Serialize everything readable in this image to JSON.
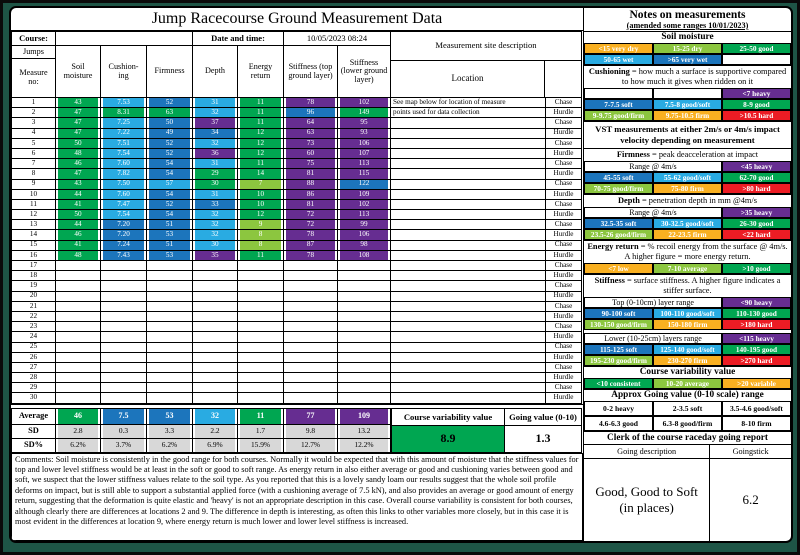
{
  "title": "Jump Racecourse Ground Measurement Data",
  "palette": {
    "green": "#00A651",
    "light_green": "#8CC63F",
    "cyan": "#29ABE2",
    "blue": "#1C75BC",
    "purple": "#662D91",
    "amber": "#F9B021",
    "red": "#EC1C24",
    "grey": "#D8D8D8",
    "variability_green": "#00A651",
    "page_margin_green": "#1E5546"
  },
  "header": {
    "course_label": "Course:",
    "datetime_label": "Date and time:",
    "datetime_value": "10/05/2023 08:24",
    "site_desc": "Measurement site description",
    "location": "Location",
    "jumps": "Jumps",
    "measure_no": "Measure\nno:"
  },
  "columns": {
    "soil": "Soil\nmoisture",
    "cushioning": "Cushion-\ning",
    "firmness": "Firmness",
    "depth": "Depth",
    "energy": "Energy\nreturn",
    "stiff_top": "Stiffness (top\nground layer)",
    "stiff_lower": "Stiffness\n(lower ground\nlayer)"
  },
  "measurements": {
    "location_notes": [
      "See map below for location of measure",
      "points used for data collection"
    ],
    "rows": [
      {
        "no": "1",
        "course": "Chase",
        "cells": [
          [
            "43",
            "green"
          ],
          [
            "7.53",
            "cyan"
          ],
          [
            "52",
            "blue"
          ],
          [
            "31",
            "cyan"
          ],
          [
            "11",
            "green"
          ],
          [
            "78",
            "purple"
          ],
          [
            "102",
            "purple"
          ]
        ]
      },
      {
        "no": "2",
        "course": "Hurdle",
        "cells": [
          [
            "47",
            "green"
          ],
          [
            "8.31",
            "green"
          ],
          [
            "63",
            "green"
          ],
          [
            "32",
            "cyan"
          ],
          [
            "11",
            "green"
          ],
          [
            "96",
            "blue"
          ],
          [
            "149",
            "green"
          ]
        ]
      },
      {
        "no": "3",
        "course": "Chase",
        "cells": [
          [
            "47",
            "green"
          ],
          [
            "7.25",
            "cyan"
          ],
          [
            "50",
            "blue"
          ],
          [
            "37",
            "purple"
          ],
          [
            "11",
            "green"
          ],
          [
            "64",
            "purple"
          ],
          [
            "95",
            "purple"
          ]
        ]
      },
      {
        "no": "4",
        "course": "Hurdle",
        "cells": [
          [
            "47",
            "green"
          ],
          [
            "7.22",
            "cyan"
          ],
          [
            "49",
            "blue"
          ],
          [
            "34",
            "blue"
          ],
          [
            "12",
            "green"
          ],
          [
            "63",
            "purple"
          ],
          [
            "93",
            "purple"
          ]
        ]
      },
      {
        "no": "5",
        "course": "Chase",
        "cells": [
          [
            "50",
            "green"
          ],
          [
            "7.51",
            "cyan"
          ],
          [
            "52",
            "blue"
          ],
          [
            "32",
            "cyan"
          ],
          [
            "12",
            "green"
          ],
          [
            "73",
            "purple"
          ],
          [
            "106",
            "purple"
          ]
        ]
      },
      {
        "no": "6",
        "course": "Hurdle",
        "cells": [
          [
            "48",
            "green"
          ],
          [
            "7.54",
            "cyan"
          ],
          [
            "52",
            "blue"
          ],
          [
            "36",
            "purple"
          ],
          [
            "12",
            "green"
          ],
          [
            "60",
            "purple"
          ],
          [
            "107",
            "purple"
          ]
        ]
      },
      {
        "no": "7",
        "course": "Chase",
        "cells": [
          [
            "46",
            "green"
          ],
          [
            "7.60",
            "cyan"
          ],
          [
            "54",
            "blue"
          ],
          [
            "31",
            "cyan"
          ],
          [
            "11",
            "green"
          ],
          [
            "75",
            "purple"
          ],
          [
            "113",
            "purple"
          ]
        ]
      },
      {
        "no": "8",
        "course": "Hurdle",
        "cells": [
          [
            "47",
            "green"
          ],
          [
            "7.82",
            "cyan"
          ],
          [
            "54",
            "blue"
          ],
          [
            "29",
            "green"
          ],
          [
            "14",
            "green"
          ],
          [
            "81",
            "purple"
          ],
          [
            "115",
            "purple"
          ]
        ]
      },
      {
        "no": "9",
        "course": "Chase",
        "cells": [
          [
            "43",
            "green"
          ],
          [
            "7.50",
            "cyan"
          ],
          [
            "57",
            "cyan"
          ],
          [
            "30",
            "green"
          ],
          [
            "7",
            "light_green"
          ],
          [
            "88",
            "purple"
          ],
          [
            "122",
            "blue"
          ]
        ]
      },
      {
        "no": "10",
        "course": "Hurdle",
        "cells": [
          [
            "44",
            "green"
          ],
          [
            "7.60",
            "cyan"
          ],
          [
            "54",
            "blue"
          ],
          [
            "31",
            "cyan"
          ],
          [
            "10",
            "green"
          ],
          [
            "86",
            "purple"
          ],
          [
            "109",
            "purple"
          ]
        ]
      },
      {
        "no": "11",
        "course": "Chase",
        "cells": [
          [
            "41",
            "green"
          ],
          [
            "7.47",
            "cyan"
          ],
          [
            "52",
            "blue"
          ],
          [
            "33",
            "blue"
          ],
          [
            "10",
            "green"
          ],
          [
            "81",
            "purple"
          ],
          [
            "102",
            "purple"
          ]
        ]
      },
      {
        "no": "12",
        "course": "Hurdle",
        "cells": [
          [
            "50",
            "green"
          ],
          [
            "7.54",
            "cyan"
          ],
          [
            "54",
            "blue"
          ],
          [
            "32",
            "cyan"
          ],
          [
            "12",
            "green"
          ],
          [
            "72",
            "purple"
          ],
          [
            "113",
            "purple"
          ]
        ]
      },
      {
        "no": "13",
        "course": "Chase",
        "cells": [
          [
            "44",
            "green"
          ],
          [
            "7.20",
            "blue"
          ],
          [
            "51",
            "blue"
          ],
          [
            "32",
            "cyan"
          ],
          [
            "9",
            "light_green"
          ],
          [
            "72",
            "purple"
          ],
          [
            "99",
            "purple"
          ]
        ]
      },
      {
        "no": "14",
        "course": "Hurdle",
        "cells": [
          [
            "46",
            "green"
          ],
          [
            "7.20",
            "blue"
          ],
          [
            "53",
            "blue"
          ],
          [
            "32",
            "cyan"
          ],
          [
            "8",
            "light_green"
          ],
          [
            "78",
            "purple"
          ],
          [
            "106",
            "purple"
          ]
        ]
      },
      {
        "no": "15",
        "course": "Chase",
        "cells": [
          [
            "41",
            "green"
          ],
          [
            "7.24",
            "blue"
          ],
          [
            "51",
            "blue"
          ],
          [
            "30",
            "cyan"
          ],
          [
            "8",
            "light_green"
          ],
          [
            "87",
            "purple"
          ],
          [
            "98",
            "purple"
          ]
        ]
      },
      {
        "no": "16",
        "course": "Hurdle",
        "cells": [
          [
            "48",
            "green"
          ],
          [
            "7.43",
            "blue"
          ],
          [
            "53",
            "blue"
          ],
          [
            "35",
            "purple"
          ],
          [
            "11",
            "green"
          ],
          [
            "78",
            "purple"
          ],
          [
            "108",
            "purple"
          ]
        ]
      },
      {
        "no": "17",
        "course": "Chase",
        "cells": []
      },
      {
        "no": "18",
        "course": "Hurdle",
        "cells": []
      },
      {
        "no": "19",
        "course": "Chase",
        "cells": []
      },
      {
        "no": "20",
        "course": "Hurdle",
        "cells": []
      },
      {
        "no": "21",
        "course": "Chase",
        "cells": []
      },
      {
        "no": "22",
        "course": "Hurdle",
        "cells": []
      },
      {
        "no": "23",
        "course": "Chase",
        "cells": []
      },
      {
        "no": "24",
        "course": "Hurdle",
        "cells": []
      },
      {
        "no": "25",
        "course": "Chase",
        "cells": []
      },
      {
        "no": "26",
        "course": "Hurdle",
        "cells": []
      },
      {
        "no": "27",
        "course": "Chase",
        "cells": []
      },
      {
        "no": "28",
        "course": "Hurdle",
        "cells": []
      },
      {
        "no": "29",
        "course": "Chase",
        "cells": []
      },
      {
        "no": "30",
        "course": "Hurdle",
        "cells": []
      }
    ]
  },
  "summary": {
    "average_label": "Average",
    "sd_label": "SD",
    "sdpct_label": "SD%",
    "average": [
      [
        "46",
        "green"
      ],
      [
        "7.5",
        "blue"
      ],
      [
        "53",
        "blue"
      ],
      [
        "32",
        "cyan"
      ],
      [
        "11",
        "green"
      ],
      [
        "77",
        "purple"
      ],
      [
        "109",
        "purple"
      ]
    ],
    "sd": [
      "2.8",
      "0.3",
      "3.3",
      "2.2",
      "1.7",
      "9.8",
      "13.2"
    ],
    "sdpct": [
      "6.2%",
      "3.7%",
      "6.2%",
      "6.9%",
      "15.9%",
      "12.7%",
      "12.2%"
    ]
  },
  "variability_box": {
    "label": "Course variability value",
    "value": "8.9",
    "going_label": "Going value (0-10)",
    "going_value": "1.3"
  },
  "comments": {
    "label": "Comments:",
    "body": " Soil moisture is consistently in the good range for both courses. Normally it would be expected that with this amount of moisture that the stiffness values for top and lower level stiffness would be at least in the soft or good to soft range. As energy return in also either average or good and cushioning varies between good and soft, we suspect that the lower stiffness values relate to the soil type. As you reported that this is a lovely sandy loam our results suggest that the whole soil profile deforms on impact, but is still able to support a substantial applied force (with a cushioning average of 7.5 kN), and also provides an average or good amount of energy return, suggesting that the deformation is quite elastic and 'heavy' is not an appropriate description in this case. Overall course variability is consistent for both courses, although clearly there are differences at locations 2 and 9. The difference in depth is interesting, as often this links to other variables more closely, but in this case it is most evident in the differences at location 9, where energy return is much lower and lower level stiffness is increased."
  },
  "notes": {
    "title": "Notes on measurements",
    "subtitle": "(amended some ranges 10/01/2023)",
    "soil_heading": "Soil moisture",
    "cushioning_def": {
      "bold": "Cushioning",
      "rest": " = how much a surface is supportive compared to how much it gives when ridden on it"
    },
    "vst": "VST measurements  at either 2m/s or 4m/s impact velocity depending on measurement",
    "firmness_def": {
      "bold": "Firmness",
      "rest": " = peak deacceleration at impact"
    },
    "depth_def": {
      "bold": "Depth",
      "rest": " = penetration depth in mm @4m/s"
    },
    "energy_def": {
      "bold": "Energy return",
      "rest": " = % recoil energy from the surface @ 4m/s.  A higher figure = more energy return."
    },
    "stiffness_def": {
      "bold": "Stiffness",
      "rest": " = surface stiffness.   A higher figure indicates a stiffer surface."
    },
    "cvv_heading": "Course variability value",
    "approx_heading": "Approx Going value (0-10 scale) range",
    "clerk_heading": "Clerk of the course raceday going report",
    "legends": {
      "soil": [
        {
          "t": "<15 very dry",
          "c": "amber"
        },
        {
          "t": "15-25 dry",
          "c": "light_green"
        },
        {
          "t": "25-50 good",
          "c": "green"
        },
        {
          "t": "50-65 wet",
          "c": "cyan"
        },
        {
          "t": ">65 very wet",
          "c": "blue"
        },
        {
          "t": "",
          "c": "plain"
        }
      ],
      "cushioning": [
        {
          "t": "",
          "c": "plain"
        },
        {
          "t": "",
          "c": "plain"
        },
        {
          "t": "<7 heavy",
          "c": "purple"
        },
        {
          "t": "7-7.5 soft",
          "c": "blue"
        },
        {
          "t": "7.5-8 good/soft",
          "c": "cyan"
        },
        {
          "t": "8-9 good",
          "c": "green"
        },
        {
          "t": "9-9.75 good/firm",
          "c": "light_green"
        },
        {
          "t": "9.75-10.5 firm",
          "c": "amber"
        },
        {
          "t": ">10.5 hard",
          "c": "red"
        }
      ],
      "firmness": [
        {
          "t": "Range @ 4m/s",
          "c": "plain",
          "w": 2
        },
        {
          "t": "<45 heavy",
          "c": "purple"
        },
        {
          "t": "45-55 soft",
          "c": "blue"
        },
        {
          "t": "55-62 good/soft",
          "c": "cyan"
        },
        {
          "t": "62-70 good",
          "c": "green"
        },
        {
          "t": "70-75 good/firm",
          "c": "light_green"
        },
        {
          "t": "75-80 firm",
          "c": "amber"
        },
        {
          "t": ">80 hard",
          "c": "red"
        }
      ],
      "depth": [
        {
          "t": "Range @ 4m/s",
          "c": "plain",
          "w": 2
        },
        {
          "t": ">35 heavy",
          "c": "purple"
        },
        {
          "t": "32.5-35 soft",
          "c": "blue"
        },
        {
          "t": "30-32.5 good/soft",
          "c": "cyan"
        },
        {
          "t": "26-30 good",
          "c": "green"
        },
        {
          "t": "23.5-26 good/firm",
          "c": "light_green"
        },
        {
          "t": "22-23.5 firm",
          "c": "amber"
        },
        {
          "t": "<22 hard",
          "c": "red"
        }
      ],
      "energy": [
        {
          "t": "<7 low",
          "c": "amber"
        },
        {
          "t": "7-10 average",
          "c": "light_green"
        },
        {
          "t": ">10 good",
          "c": "green"
        }
      ],
      "stiff_top": [
        {
          "t": "Top (0-10cm) layer range",
          "c": "plain",
          "w": 2
        },
        {
          "t": "<90 heavy",
          "c": "purple"
        },
        {
          "t": "90-100 soft",
          "c": "blue"
        },
        {
          "t": "100-110 good/soft",
          "c": "cyan"
        },
        {
          "t": "110-130 good",
          "c": "green"
        },
        {
          "t": "130-150 good/firm",
          "c": "light_green"
        },
        {
          "t": "150-180 firm",
          "c": "amber"
        },
        {
          "t": ">180 hard",
          "c": "red"
        }
      ],
      "stiff_lower": [
        {
          "t": "Lower (10-25cm) layers range",
          "c": "plain",
          "w": 2
        },
        {
          "t": "<115 heavy",
          "c": "purple"
        },
        {
          "t": "115-125 soft",
          "c": "blue"
        },
        {
          "t": "125-140 good/soft",
          "c": "cyan"
        },
        {
          "t": "140-195 good",
          "c": "green"
        },
        {
          "t": "195-230 good/firm",
          "c": "light_green"
        },
        {
          "t": "230-270 firm",
          "c": "amber"
        },
        {
          "t": ">270 hard",
          "c": "red"
        }
      ],
      "variability": [
        {
          "t": "<10 consistent",
          "c": "green"
        },
        {
          "t": "10-20 average",
          "c": "light_green"
        },
        {
          "t": ">20 variable",
          "c": "amber"
        }
      ],
      "going_scale": [
        {
          "t": "0-2 heavy",
          "c": "pb"
        },
        {
          "t": "2-3.5 soft",
          "c": "pb"
        },
        {
          "t": "3.5-4.6 good/soft",
          "c": "pb"
        },
        {
          "t": "4.6-6.3 good",
          "c": "pb"
        },
        {
          "t": "6.3-8 good/firm",
          "c": "pb"
        },
        {
          "t": "8-10 firm",
          "c": "pb"
        }
      ]
    },
    "clerk": {
      "going_desc_label": "Going description",
      "goingstick_label": "Goingstick",
      "going_desc_value": "Good, Good to Soft\n(in places)",
      "goingstick_value": "6.2"
    }
  }
}
